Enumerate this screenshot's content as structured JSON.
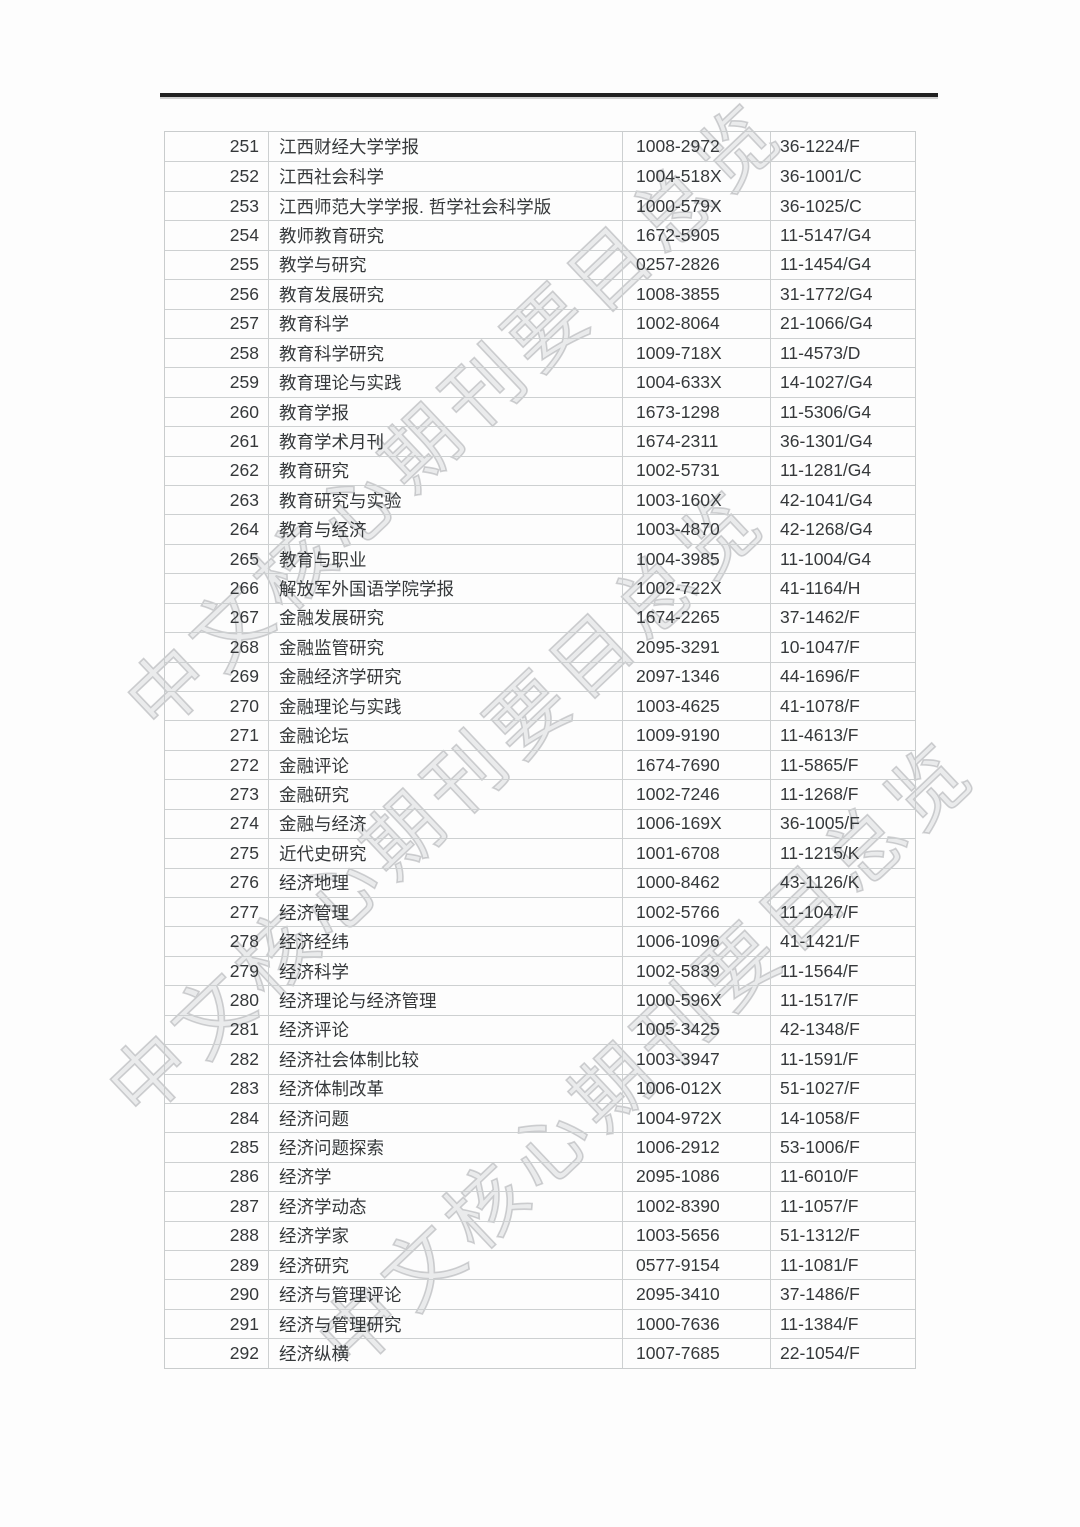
{
  "page": {
    "watermark_text": "中文核心期刊要目总览"
  },
  "table": {
    "rows": [
      {
        "no": "251",
        "title": "江西财经大学学报",
        "issn": "1008-2972",
        "cn": "36-1224/F"
      },
      {
        "no": "252",
        "title": "江西社会科学",
        "issn": "1004-518X",
        "cn": "36-1001/C"
      },
      {
        "no": "253",
        "title": "江西师范大学学报. 哲学社会科学版",
        "issn": "1000-579X",
        "cn": "36-1025/C"
      },
      {
        "no": "254",
        "title": "教师教育研究",
        "issn": "1672-5905",
        "cn": "11-5147/G4"
      },
      {
        "no": "255",
        "title": "教学与研究",
        "issn": "0257-2826",
        "cn": "11-1454/G4"
      },
      {
        "no": "256",
        "title": "教育发展研究",
        "issn": "1008-3855",
        "cn": "31-1772/G4"
      },
      {
        "no": "257",
        "title": "教育科学",
        "issn": "1002-8064",
        "cn": "21-1066/G4"
      },
      {
        "no": "258",
        "title": "教育科学研究",
        "issn": "1009-718X",
        "cn": "11-4573/D"
      },
      {
        "no": "259",
        "title": "教育理论与实践",
        "issn": "1004-633X",
        "cn": "14-1027/G4"
      },
      {
        "no": "260",
        "title": "教育学报",
        "issn": "1673-1298",
        "cn": "11-5306/G4"
      },
      {
        "no": "261",
        "title": "教育学术月刊",
        "issn": "1674-2311",
        "cn": "36-1301/G4"
      },
      {
        "no": "262",
        "title": "教育研究",
        "issn": "1002-5731",
        "cn": "11-1281/G4"
      },
      {
        "no": "263",
        "title": "教育研究与实验",
        "issn": "1003-160X",
        "cn": "42-1041/G4"
      },
      {
        "no": "264",
        "title": "教育与经济",
        "issn": "1003-4870",
        "cn": "42-1268/G4"
      },
      {
        "no": "265",
        "title": "教育与职业",
        "issn": "1004-3985",
        "cn": "11-1004/G4"
      },
      {
        "no": "266",
        "title": "解放军外国语学院学报",
        "issn": "1002-722X",
        "cn": "41-1164/H"
      },
      {
        "no": "267",
        "title": "金融发展研究",
        "issn": "1674-2265",
        "cn": "37-1462/F"
      },
      {
        "no": "268",
        "title": "金融监管研究",
        "issn": "2095-3291",
        "cn": "10-1047/F"
      },
      {
        "no": "269",
        "title": "金融经济学研究",
        "issn": "2097-1346",
        "cn": "44-1696/F"
      },
      {
        "no": "270",
        "title": "金融理论与实践",
        "issn": "1003-4625",
        "cn": "41-1078/F"
      },
      {
        "no": "271",
        "title": "金融论坛",
        "issn": "1009-9190",
        "cn": "11-4613/F"
      },
      {
        "no": "272",
        "title": "金融评论",
        "issn": "1674-7690",
        "cn": "11-5865/F"
      },
      {
        "no": "273",
        "title": "金融研究",
        "issn": "1002-7246",
        "cn": "11-1268/F"
      },
      {
        "no": "274",
        "title": "金融与经济",
        "issn": "1006-169X",
        "cn": "36-1005/F"
      },
      {
        "no": "275",
        "title": "近代史研究",
        "issn": "1001-6708",
        "cn": "11-1215/K"
      },
      {
        "no": "276",
        "title": "经济地理",
        "issn": "1000-8462",
        "cn": "43-1126/K"
      },
      {
        "no": "277",
        "title": "经济管理",
        "issn": "1002-5766",
        "cn": "11-1047/F"
      },
      {
        "no": "278",
        "title": "经济经纬",
        "issn": "1006-1096",
        "cn": "41-1421/F"
      },
      {
        "no": "279",
        "title": "经济科学",
        "issn": "1002-5839",
        "cn": "11-1564/F"
      },
      {
        "no": "280",
        "title": "经济理论与经济管理",
        "issn": "1000-596X",
        "cn": "11-1517/F"
      },
      {
        "no": "281",
        "title": "经济评论",
        "issn": "1005-3425",
        "cn": "42-1348/F"
      },
      {
        "no": "282",
        "title": "经济社会体制比较",
        "issn": "1003-3947",
        "cn": "11-1591/F"
      },
      {
        "no": "283",
        "title": "经济体制改革",
        "issn": "1006-012X",
        "cn": "51-1027/F"
      },
      {
        "no": "284",
        "title": "经济问题",
        "issn": "1004-972X",
        "cn": "14-1058/F"
      },
      {
        "no": "285",
        "title": "经济问题探索",
        "issn": "1006-2912",
        "cn": "53-1006/F"
      },
      {
        "no": "286",
        "title": "经济学",
        "issn": "2095-1086",
        "cn": "11-6010/F"
      },
      {
        "no": "287",
        "title": "经济学动态",
        "issn": "1002-8390",
        "cn": "11-1057/F"
      },
      {
        "no": "288",
        "title": "经济学家",
        "issn": "1003-5656",
        "cn": "51-1312/F"
      },
      {
        "no": "289",
        "title": "经济研究",
        "issn": "0577-9154",
        "cn": "11-1081/F"
      },
      {
        "no": "290",
        "title": "经济与管理评论",
        "issn": "2095-3410",
        "cn": "37-1486/F"
      },
      {
        "no": "291",
        "title": "经济与管理研究",
        "issn": "1000-7636",
        "cn": "11-1384/F"
      },
      {
        "no": "292",
        "title": "经济纵横",
        "issn": "1007-7685",
        "cn": "22-1054/F"
      }
    ]
  }
}
